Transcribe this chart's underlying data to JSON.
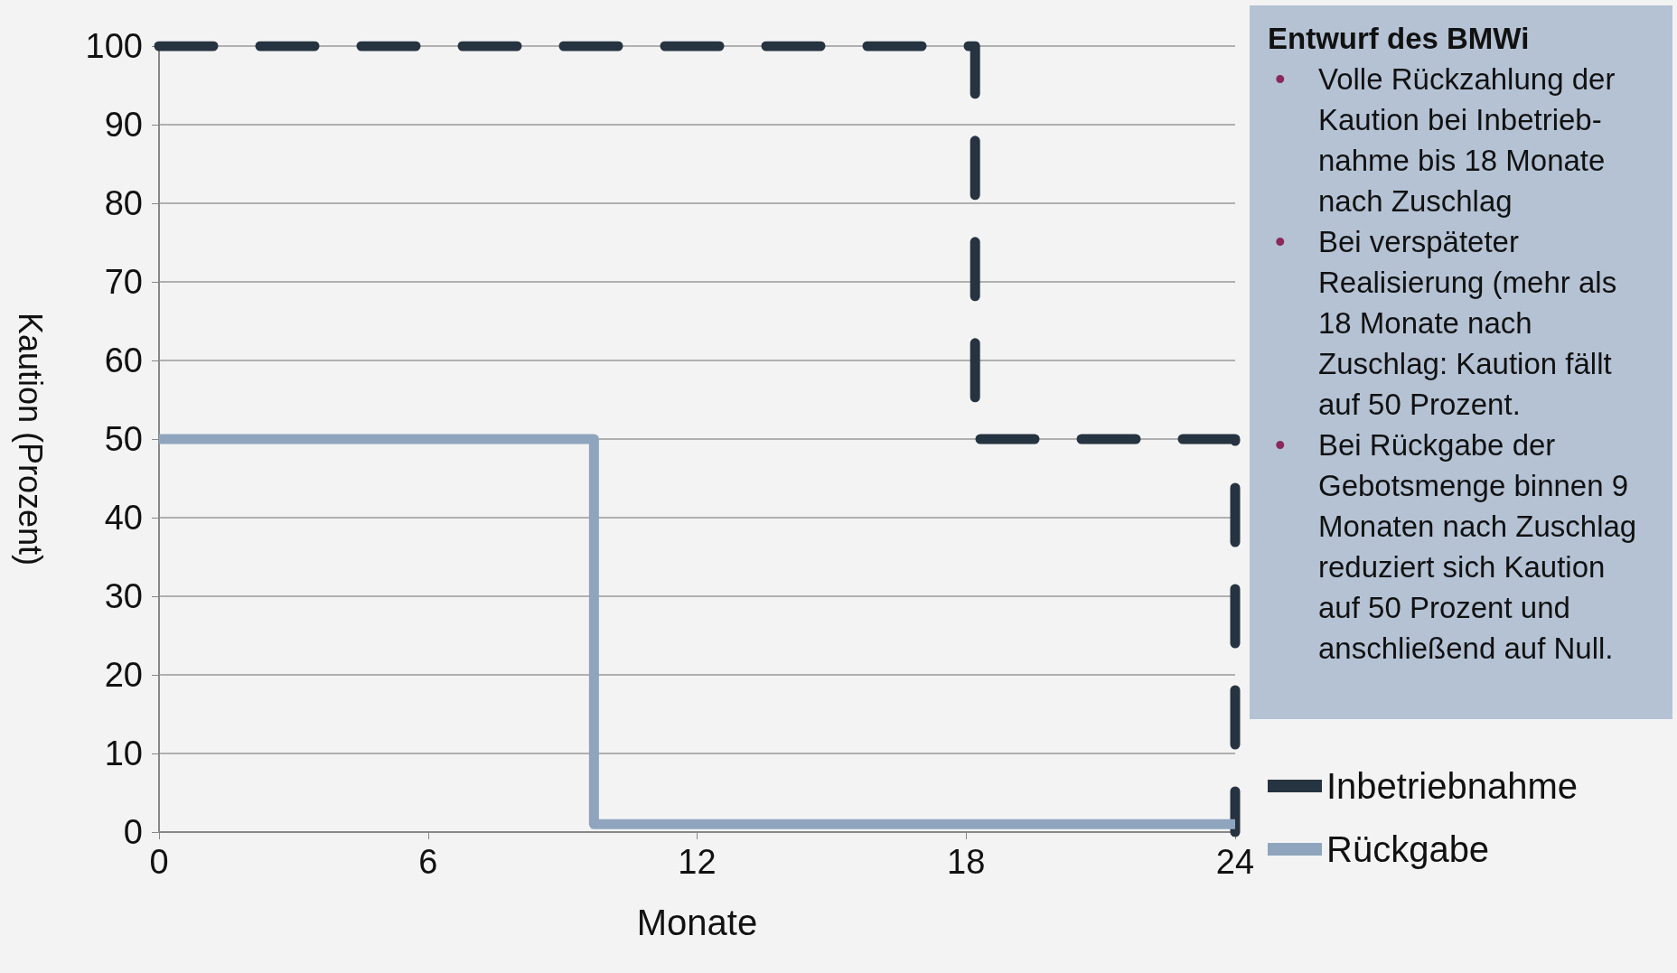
{
  "chart_data": {
    "type": "line",
    "xlabel": "Monate",
    "ylabel": "Kaution (Prozent)",
    "series": [
      {
        "name": "Inbetriebnahme",
        "color": "#263340",
        "line_style": "dashed",
        "x": [
          0,
          18.2,
          18.2,
          24,
          24
        ],
        "values": [
          100,
          100,
          50,
          50,
          0
        ]
      },
      {
        "name": "Rückgabe",
        "color": "#8fa5bd",
        "line_style": "solid",
        "x": [
          0,
          9.7,
          9.7,
          24
        ],
        "values": [
          50,
          50,
          1,
          1
        ]
      }
    ],
    "xlim": [
      0,
      24
    ],
    "xticks": [
      0,
      6,
      12,
      18,
      24
    ],
    "ylim": [
      0,
      100
    ],
    "yticks": [
      0,
      10,
      20,
      30,
      40,
      50,
      60,
      70,
      80,
      90,
      100
    ],
    "grid": "y",
    "legend": "bottom right",
    "marker": "none",
    "annotations": [
      "Entwurf des BMWi",
      "• Volle Rückzahlung der Kaution bei Inbetrieb-nahme bis 18 Monate nach Zuschlag",
      "• Bei verspäteter Realisierung (mehr als 18 Monate nach Zuschlag: Kaution fällt auf 50 Prozent.",
      "• Bei Rückgabe der Gebotsmenge binnen 9 Monaten nach Zuschlag reduziert sich Kaution auf 50 Prozent und anschließend auf Null."
    ]
  }
}
